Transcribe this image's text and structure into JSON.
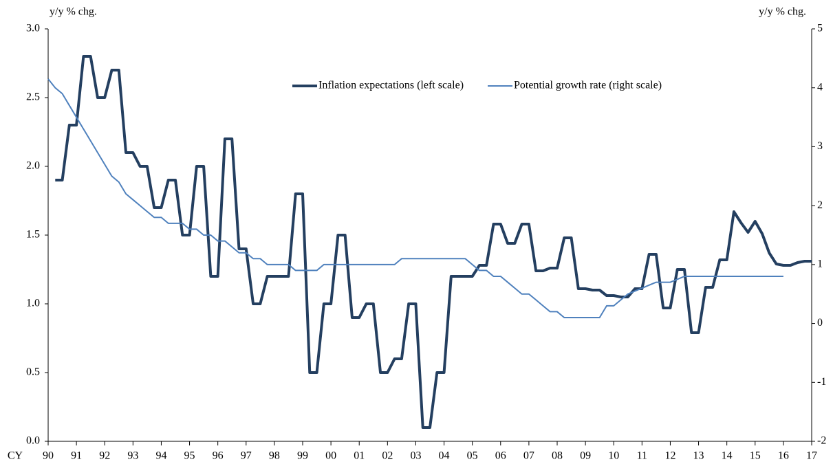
{
  "chart_data": {
    "type": "line",
    "y_label": "y/y % chg.",
    "y2_label": "y/y % chg.",
    "x_label": "CY",
    "categories": [
      "90",
      null,
      null,
      null,
      "91",
      null,
      null,
      null,
      "92",
      null,
      null,
      null,
      "93",
      null,
      null,
      null,
      "94",
      null,
      null,
      null,
      "95",
      null,
      null,
      null,
      "96",
      null,
      null,
      null,
      "97",
      null,
      null,
      null,
      "98",
      null,
      null,
      null,
      "99",
      null,
      null,
      null,
      "00",
      null,
      null,
      null,
      "01",
      null,
      null,
      null,
      "02",
      null,
      null,
      null,
      "03",
      null,
      null,
      null,
      "04",
      null,
      null,
      null,
      "05",
      null,
      null,
      null,
      "06",
      null,
      null,
      null,
      "07",
      null,
      null,
      null,
      "08",
      null,
      null,
      null,
      "09",
      null,
      null,
      null,
      "10",
      null,
      null,
      null,
      "11",
      null,
      null,
      null,
      "12",
      null,
      null,
      null,
      "13",
      null,
      null,
      null,
      "14",
      null,
      null,
      null,
      "15",
      null,
      null,
      null,
      "16",
      null,
      null,
      null,
      "17"
    ],
    "series": [
      {
        "name": "Inflation expectations (left scale)",
        "color": "#243f60",
        "width": 4,
        "axis": "y",
        "values": [
          null,
          1.9,
          1.9,
          2.3,
          2.3,
          2.8,
          2.8,
          2.5,
          2.5,
          2.7,
          2.7,
          2.1,
          2.1,
          2.0,
          2.0,
          1.7,
          1.7,
          1.9,
          1.9,
          1.5,
          1.5,
          2.0,
          2.0,
          1.2,
          1.2,
          2.2,
          2.2,
          1.4,
          1.4,
          1.0,
          1.0,
          1.2,
          1.2,
          1.2,
          1.2,
          1.8,
          1.8,
          0.5,
          0.5,
          1.0,
          1.0,
          1.5,
          1.5,
          0.9,
          0.9,
          1.0,
          1.0,
          0.5,
          0.5,
          0.6,
          0.6,
          1.0,
          1.0,
          0.1,
          0.1,
          0.5,
          0.5,
          1.2,
          1.2,
          1.2,
          1.2,
          1.28,
          1.28,
          1.58,
          1.58,
          1.44,
          1.44,
          1.58,
          1.58,
          1.24,
          1.24,
          1.26,
          1.26,
          1.48,
          1.48,
          1.11,
          1.11,
          1.1,
          1.1,
          1.06,
          1.06,
          1.05,
          1.05,
          1.11,
          1.11,
          1.36,
          1.36,
          0.97,
          0.97,
          1.25,
          1.25,
          0.79,
          0.79,
          1.12,
          1.12,
          1.32,
          1.32,
          1.67,
          1.59,
          1.52,
          1.6,
          1.51,
          1.37,
          1.29,
          1.28,
          1.28,
          1.3,
          1.31,
          1.31
        ]
      },
      {
        "name": "Potential growth rate (right scale)",
        "color": "#4f81bd",
        "width": 2,
        "axis": "y2",
        "values": [
          4.15,
          4.0,
          3.9,
          3.7,
          3.5,
          3.3,
          3.1,
          2.9,
          2.7,
          2.5,
          2.4,
          2.2,
          2.1,
          2.0,
          1.9,
          1.8,
          1.8,
          1.7,
          1.7,
          1.7,
          1.6,
          1.6,
          1.5,
          1.5,
          1.4,
          1.4,
          1.3,
          1.2,
          1.2,
          1.1,
          1.1,
          1.0,
          1.0,
          1.0,
          1.0,
          0.9,
          0.9,
          0.9,
          0.9,
          1.0,
          1.0,
          1.0,
          1.0,
          1.0,
          1.0,
          1.0,
          1.0,
          1.0,
          1.0,
          1.0,
          1.1,
          1.1,
          1.1,
          1.1,
          1.1,
          1.1,
          1.1,
          1.1,
          1.1,
          1.1,
          1.0,
          0.9,
          0.9,
          0.8,
          0.8,
          0.7,
          0.6,
          0.5,
          0.5,
          0.4,
          0.3,
          0.2,
          0.2,
          0.1,
          0.1,
          0.1,
          0.1,
          0.1,
          0.1,
          0.3,
          0.3,
          0.4,
          0.5,
          0.55,
          0.6,
          0.65,
          0.7,
          0.7,
          0.7,
          0.75,
          0.8,
          0.8,
          0.8,
          0.8,
          0.8,
          0.8,
          0.8,
          0.8,
          0.8,
          0.8,
          0.8,
          0.8,
          0.8,
          0.8,
          0.8,
          null,
          null,
          null,
          null
        ]
      }
    ],
    "ylim": [
      0,
      3
    ],
    "yticks": [
      {
        "value": 0,
        "label": "0.0"
      },
      0.5,
      {
        "value": 1,
        "label": "1.0"
      },
      1.5,
      {
        "value": 2,
        "label": "2.0"
      },
      2.5,
      {
        "value": 3,
        "label": "3.0"
      }
    ],
    "y2lim": [
      -2,
      5
    ],
    "y2ticks": [
      -2,
      -1,
      0,
      1,
      2,
      3,
      4,
      5
    ],
    "grid": false,
    "legend": "top"
  }
}
